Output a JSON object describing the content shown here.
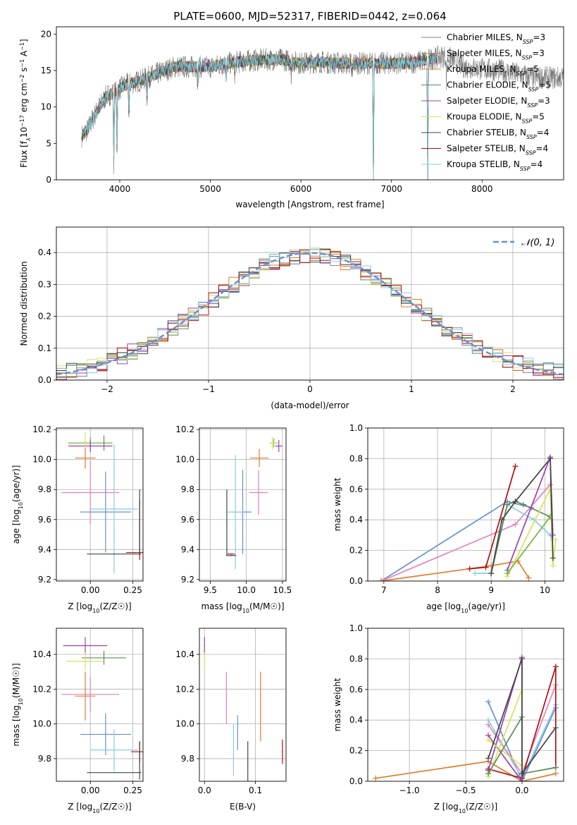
{
  "figure_title": "PLATE=0600, MJD=52317, FIBERID=0442, z=0.064",
  "colors": {
    "Chabrier MILES": "#808080",
    "Salpeter MILES": "#8a8a8a",
    "Kroupa MILES": "#e07b28",
    "Chabrier ELODIE": "#5a8a5a",
    "Salpeter ELODIE": "#9b40b8",
    "Kroupa ELODIE": "#d9e35a",
    "Chabrier STELIB": "#444444",
    "Salpeter STELIB": "#b01010",
    "Kroupa STELIB": "#86d0e0",
    "blue": "#6690d6",
    "pink": "#e582bd",
    "green": "#72b53a"
  },
  "chart_data": [
    {
      "id": "spectrum",
      "type": "line",
      "xlabel": "wavelength [Angstrom, rest frame]",
      "ylabel_parts": [
        "Flux [f",
        "λ",
        "10",
        "−17",
        " erg cm",
        "−2",
        " s",
        "−1",
        " A",
        "−1",
        "]"
      ],
      "xlim": [
        3300,
        8900
      ],
      "ylim": [
        0,
        21
      ],
      "xticks": [
        4000,
        5000,
        6000,
        7000,
        8000
      ],
      "yticks": [
        0,
        5,
        10,
        15,
        20
      ],
      "legend": [
        {
          "model": "Chabrier MILES",
          "nssp": "3"
        },
        {
          "model": "Salpeter MILES",
          "nssp": "3"
        },
        {
          "model": "Kroupa MILES",
          "nssp": "5"
        },
        {
          "model": "Chabrier ELODIE",
          "nssp": "5"
        },
        {
          "model": "Salpeter ELODIE",
          "nssp": "3"
        },
        {
          "model": "Kroupa ELODIE",
          "nssp": "5"
        },
        {
          "model": "Chabrier STELIB",
          "nssp": "4"
        },
        {
          "model": "Salpeter STELIB",
          "nssp": "4"
        },
        {
          "model": "Kroupa STELIB",
          "nssp": "4"
        }
      ],
      "legend_nssp_label": "N",
      "legend_nssp_sub": "SSP",
      "continuum": [
        [
          3580,
          6
        ],
        [
          3650,
          7
        ],
        [
          3750,
          9.5
        ],
        [
          3850,
          11.5
        ],
        [
          3950,
          12
        ],
        [
          4050,
          13
        ],
        [
          4200,
          13.5
        ],
        [
          4400,
          14.5
        ],
        [
          4600,
          15.5
        ],
        [
          4800,
          15.5
        ],
        [
          5000,
          15.5
        ],
        [
          5200,
          16
        ],
        [
          5400,
          16.3
        ],
        [
          5600,
          16.5
        ],
        [
          5800,
          16.5
        ],
        [
          6000,
          16
        ],
        [
          6200,
          16.2
        ],
        [
          6400,
          16
        ],
        [
          6600,
          16
        ],
        [
          6800,
          16
        ],
        [
          7000,
          16
        ],
        [
          7200,
          16
        ],
        [
          7400,
          16.5
        ],
        [
          7600,
          17
        ],
        [
          7800,
          15.5
        ],
        [
          8000,
          15.2
        ],
        [
          8200,
          15
        ],
        [
          8400,
          14.5
        ],
        [
          8600,
          14
        ]
      ],
      "model_range": [
        3580,
        7500
      ],
      "observed_range": [
        3580,
        8900
      ],
      "dips": [
        [
          3934,
          0.2
        ],
        [
          3969,
          0.3
        ],
        [
          4102,
          0.65
        ],
        [
          4300,
          0.8
        ],
        [
          4861,
          0.85
        ],
        [
          5175,
          0.88
        ],
        [
          5270,
          0.9
        ],
        [
          5893,
          0.9
        ],
        [
          6563,
          0.9
        ],
        [
          6800,
          0.0
        ],
        [
          7400,
          0.0
        ],
        [
          7606,
          0.8
        ]
      ]
    },
    {
      "id": "residuals",
      "type": "histogram",
      "xlabel": "(data-model)/error",
      "ylabel": "Normed distribution",
      "xlim": [
        -2.5,
        2.5
      ],
      "ylim": [
        0,
        0.48
      ],
      "xticks": [
        -2,
        -1,
        0,
        1,
        2
      ],
      "yticks": [
        0.0,
        0.1,
        0.2,
        0.3,
        0.4
      ],
      "bin_width": 0.1,
      "reference": {
        "label": "𝒩(0, 1)",
        "mean": 0,
        "sigma": 1
      }
    },
    {
      "id": "age_vs_Z",
      "type": "scatter",
      "xlabel": "Z [log10(Z/Z☉)]",
      "ylabel": "age [log10(age/yr)]",
      "xlim": [
        -0.2,
        0.31
      ],
      "ylim": [
        9.19,
        10.21
      ],
      "xticks": [
        0.0,
        0.25
      ],
      "yticks": [
        9.2,
        9.4,
        9.6,
        9.8,
        10.0,
        10.2
      ],
      "points": [
        {
          "series": "green",
          "x": 0.0,
          "y": 10.11,
          "xerr": 0.13,
          "yerr": 0.04
        },
        {
          "series": "Salpeter ELODIE",
          "x": 0.0,
          "y": 10.09,
          "xerr": 0.13,
          "yerr": 0.04
        },
        {
          "series": "Kroupa ELODIE",
          "x": -0.03,
          "y": 10.12,
          "xerr": 0.0,
          "yerr": 0.06
        },
        {
          "series": "Chabrier ELODIE",
          "x": 0.08,
          "y": 10.11,
          "xerr": 0.0,
          "yerr": 0.05
        },
        {
          "series": "Kroupa MILES",
          "x": -0.03,
          "y": 10.01,
          "xerr": 0.06,
          "yerr": 0.07
        },
        {
          "series": "pink",
          "x": 0.0,
          "y": 9.78,
          "xerr": 0.17,
          "yerr": 0.21
        },
        {
          "series": "blue",
          "x": 0.09,
          "y": 9.65,
          "xerr": 0.15,
          "yerr": 0.27
        },
        {
          "series": "Kroupa STELIB",
          "x": 0.14,
          "y": 9.67,
          "xerr": 0.14,
          "yerr": 0.43
        },
        {
          "series": "Salpeter STELIB",
          "x": 0.29,
          "y": 9.53,
          "xerr": 0.0,
          "yerr": 0.2
        },
        {
          "series": "Chabrier STELIB",
          "x": 0.29,
          "y": 9.58,
          "xerr": 0.0,
          "yerr": 0.22
        },
        {
          "series": "Salpeter STELIB",
          "x": 0.26,
          "y": 9.38,
          "xerr": 0.05,
          "yerr": 0.0
        },
        {
          "series": "Chabrier STELIB",
          "x": 0.14,
          "y": 9.37,
          "xerr": 0.16,
          "yerr": 0.0
        }
      ]
    },
    {
      "id": "age_vs_mass",
      "type": "scatter",
      "xlabel": "mass [log10(M/M☉)]",
      "ylabel": "",
      "xlim": [
        9.35,
        10.55
      ],
      "ylim": [
        9.19,
        10.21
      ],
      "xticks": [
        9.5,
        10.0,
        10.5
      ],
      "yticks": [
        9.2,
        9.4,
        9.6,
        9.8,
        10.0,
        10.2
      ],
      "points": [
        {
          "series": "green",
          "x": 10.38,
          "y": 10.11,
          "xerr": 0.05,
          "yerr": 0.03
        },
        {
          "series": "Kroupa ELODIE",
          "x": 10.36,
          "y": 10.11,
          "xerr": 0.05,
          "yerr": 0.04
        },
        {
          "series": "Salpeter ELODIE",
          "x": 10.45,
          "y": 10.09,
          "xerr": 0.05,
          "yerr": 0.04
        },
        {
          "series": "Kroupa MILES",
          "x": 10.18,
          "y": 10.01,
          "xerr": 0.13,
          "yerr": 0.06
        },
        {
          "series": "pink",
          "x": 10.17,
          "y": 9.78,
          "xerr": 0.13,
          "yerr": 0.15
        },
        {
          "series": "blue",
          "x": 9.95,
          "y": 9.65,
          "xerr": 0.12,
          "yerr": 0.28
        },
        {
          "series": "Kroupa STELIB",
          "x": 9.85,
          "y": 9.65,
          "xerr": 0.11,
          "yerr": 0.38
        },
        {
          "series": "Chabrier STELIB",
          "x": 9.73,
          "y": 9.58,
          "xerr": 0.0,
          "yerr": 0.22
        },
        {
          "series": "Salpeter STELIB",
          "x": 9.79,
          "y": 9.37,
          "xerr": 0.05,
          "yerr": 0.0
        },
        {
          "series": "Chabrier STELIB",
          "x": 9.79,
          "y": 9.36,
          "xerr": 0.07,
          "yerr": 0.0
        }
      ]
    },
    {
      "id": "weight_vs_age",
      "type": "line",
      "xlabel": "age [log10(age/yr)]",
      "ylabel": "mass weight",
      "xlim": [
        6.7,
        10.35
      ],
      "ylim": [
        0,
        1
      ],
      "xticks": [
        7,
        8,
        9,
        10
      ],
      "yticks": [
        0.0,
        0.2,
        0.4,
        0.6,
        0.8,
        1.0
      ],
      "series": [
        {
          "series": "blue",
          "points": [
            [
              6.95,
              0.0
            ],
            [
              9.3,
              0.52
            ],
            [
              9.75,
              0.48
            ]
          ]
        },
        {
          "series": "pink",
          "points": [
            [
              6.95,
              0.0
            ],
            [
              9.45,
              0.37
            ],
            [
              10.1,
              0.63
            ]
          ]
        },
        {
          "series": "Kroupa MILES",
          "points": [
            [
              6.95,
              0.0
            ],
            [
              9.0,
              0.1
            ],
            [
              9.5,
              0.13
            ],
            [
              9.7,
              0.02
            ]
          ]
        },
        {
          "series": "Salpeter STELIB",
          "points": [
            [
              8.6,
              0.08
            ],
            [
              8.9,
              0.09
            ],
            [
              9.45,
              0.75
            ]
          ]
        },
        {
          "series": "Kroupa STELIB",
          "points": [
            [
              8.7,
              0.05
            ],
            [
              9.0,
              0.05
            ],
            [
              9.3,
              0.5
            ],
            [
              9.8,
              0.4
            ],
            [
              10.1,
              0.3
            ],
            [
              10.15,
              0.27
            ]
          ]
        },
        {
          "series": "Chabrier ELODIE",
          "points": [
            [
              9.0,
              0.05
            ],
            [
              9.3,
              0.5
            ],
            [
              9.45,
              0.52
            ],
            [
              9.6,
              0.5
            ],
            [
              10.1,
              0.42
            ]
          ]
        },
        {
          "series": "Salpeter ELODIE",
          "points": [
            [
              9.3,
              0.07
            ],
            [
              10.1,
              0.81
            ],
            [
              10.15,
              0.3
            ]
          ]
        },
        {
          "series": "Kroupa ELODIE",
          "points": [
            [
              9.3,
              0.03
            ],
            [
              10.1,
              0.6
            ],
            [
              10.15,
              0.1
            ],
            [
              10.2,
              0.27
            ]
          ]
        },
        {
          "series": "Chabrier STELIB",
          "points": [
            [
              9.0,
              0.05
            ],
            [
              9.2,
              0.4
            ],
            [
              9.45,
              0.52
            ],
            [
              10.1,
              0.8
            ],
            [
              10.15,
              0.15
            ]
          ]
        },
        {
          "series": "green",
          "points": [
            [
              9.3,
              0.05
            ],
            [
              10.1,
              0.42
            ]
          ]
        }
      ]
    },
    {
      "id": "mass_vs_Z",
      "type": "scatter",
      "xlabel": "Z [log10(Z/Z☉)]",
      "ylabel": "mass [log10(M/M☉)]",
      "xlim": [
        -0.2,
        0.31
      ],
      "ylim": [
        9.67,
        10.55
      ],
      "xticks": [
        0.0,
        0.25
      ],
      "yticks": [
        9.8,
        10.0,
        10.2,
        10.4
      ],
      "points": [
        {
          "series": "Salpeter ELODIE",
          "x": -0.03,
          "y": 10.45,
          "xerr": 0.13,
          "yerr": 0.05
        },
        {
          "series": "Chabrier ELODIE",
          "x": 0.08,
          "y": 10.38,
          "xerr": 0.13,
          "yerr": 0.04
        },
        {
          "series": "Kroupa ELODIE",
          "x": -0.03,
          "y": 10.36,
          "xerr": 0.11,
          "yerr": 0.05
        },
        {
          "series": "Kroupa MILES",
          "x": -0.03,
          "y": 10.16,
          "xerr": 0.06,
          "yerr": 0.14
        },
        {
          "series": "pink",
          "x": 0.0,
          "y": 10.17,
          "xerr": 0.17,
          "yerr": 0.1
        },
        {
          "series": "blue",
          "x": 0.09,
          "y": 9.94,
          "xerr": 0.15,
          "yerr": 0.12
        },
        {
          "series": "Kroupa STELIB",
          "x": 0.14,
          "y": 9.85,
          "xerr": 0.14,
          "yerr": 0.12
        },
        {
          "series": "Salpeter STELIB",
          "x": 0.29,
          "y": 9.84,
          "xerr": 0.05,
          "yerr": 0.06
        },
        {
          "series": "Chabrier STELIB",
          "x": 0.29,
          "y": 9.79,
          "xerr": 0.0,
          "yerr": 0.11
        },
        {
          "series": "Chabrier STELIB",
          "x": 0.14,
          "y": 9.72,
          "xerr": 0.16,
          "yerr": 0.0
        }
      ]
    },
    {
      "id": "mass_vs_ebv",
      "type": "scatter",
      "xlabel": "E(B-V)",
      "ylabel": "",
      "xlim": [
        -0.01,
        0.16
      ],
      "ylim": [
        9.67,
        10.55
      ],
      "xticks": [
        0.0,
        0.1
      ],
      "yticks": [
        9.8,
        10.0,
        10.2,
        10.4
      ],
      "points": [
        {
          "series": "Salpeter ELODIE",
          "x": 0.0,
          "y": 10.45,
          "xerr": 0,
          "yerr": 0.05
        },
        {
          "series": "Kroupa ELODIE",
          "x": 0.0,
          "y": 10.36,
          "xerr": 0,
          "yerr": 0.05
        },
        {
          "series": "pink",
          "x": 0.043,
          "y": 10.15,
          "xerr": 0,
          "yerr": 0.15
        },
        {
          "series": "Kroupa MILES",
          "x": 0.11,
          "y": 10.1,
          "xerr": 0,
          "yerr": 0.2
        },
        {
          "series": "blue",
          "x": 0.065,
          "y": 9.95,
          "xerr": 0,
          "yerr": 0.1
        },
        {
          "series": "Kroupa STELIB",
          "x": 0.057,
          "y": 9.85,
          "xerr": 0,
          "yerr": 0.15
        },
        {
          "series": "Chabrier STELIB",
          "x": 0.085,
          "y": 9.78,
          "xerr": 0,
          "yerr": 0.12
        },
        {
          "series": "Salpeter STELIB",
          "x": 0.153,
          "y": 9.84,
          "xerr": 0,
          "yerr": 0.07
        }
      ]
    },
    {
      "id": "weight_vs_Z",
      "type": "line",
      "xlabel": "Z [log10(Z/Z☉)]",
      "ylabel": "mass weight",
      "xlim": [
        -1.37,
        0.37
      ],
      "ylim": [
        0,
        1
      ],
      "xticks": [
        -1.0,
        -0.5,
        0.0
      ],
      "yticks": [
        0.0,
        0.2,
        0.4,
        0.6,
        0.8,
        1.0
      ],
      "series": [
        {
          "series": "Kroupa MILES",
          "points": [
            [
              -1.3,
              0.02
            ],
            [
              -0.3,
              0.13
            ],
            [
              0.0,
              0.0
            ],
            [
              0.3,
              0.05
            ]
          ]
        },
        {
          "series": "blue",
          "points": [
            [
              -0.3,
              0.52
            ],
            [
              0.0,
              0.0
            ],
            [
              0.3,
              0.48
            ]
          ]
        },
        {
          "series": "Kroupa STELIB",
          "points": [
            [
              -0.3,
              0.4
            ],
            [
              0.0,
              0.02
            ],
            [
              0.3,
              0.5
            ]
          ]
        },
        {
          "series": "pink",
          "points": [
            [
              -0.3,
              0.37
            ],
            [
              0.0,
              0.05
            ],
            [
              0.3,
              0.63
            ]
          ]
        },
        {
          "series": "Salpeter STELIB",
          "points": [
            [
              -0.3,
              0.08
            ],
            [
              0.0,
              0.02
            ],
            [
              0.3,
              0.75
            ],
            [
              0.3,
              0.09
            ]
          ]
        },
        {
          "series": "Salpeter ELODIE",
          "points": [
            [
              -0.3,
              0.07
            ],
            [
              0.0,
              0.81
            ],
            [
              0.0,
              0.0
            ],
            [
              -0.3,
              0.3
            ]
          ]
        },
        {
          "series": "Kroupa ELODIE",
          "points": [
            [
              -0.3,
              0.03
            ],
            [
              0.0,
              0.6
            ],
            [
              0.0,
              0.1
            ],
            [
              -0.3,
              0.27
            ]
          ]
        },
        {
          "series": "Chabrier ELODIE",
          "points": [
            [
              -0.3,
              0.05
            ],
            [
              0.0,
              0.42
            ],
            [
              0.0,
              0.05
            ],
            [
              0.3,
              0.09
            ]
          ]
        },
        {
          "series": "Chabrier STELIB",
          "points": [
            [
              -0.3,
              0.15
            ],
            [
              0.0,
              0.8
            ],
            [
              0.0,
              0.05
            ],
            [
              0.3,
              0.35
            ]
          ]
        }
      ]
    }
  ]
}
